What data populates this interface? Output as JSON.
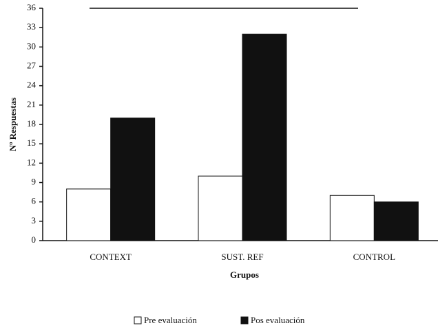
{
  "chart_data": {
    "type": "bar",
    "categories": [
      "CONTEXT",
      "SUST. REF",
      "CONTROL"
    ],
    "series": [
      {
        "name": "Pre evaluación",
        "color": "#ffffff",
        "values": [
          8,
          10,
          7
        ]
      },
      {
        "name": "Pos evaluación",
        "color": "#111111",
        "values": [
          19,
          32,
          6
        ]
      }
    ],
    "xlabel": "Grupos",
    "ylabel": "Nº Respuestas",
    "ylim": [
      0,
      36
    ],
    "yticks": [
      0,
      3,
      6,
      9,
      12,
      15,
      18,
      21,
      24,
      27,
      30,
      33,
      36
    ],
    "grid": false,
    "legend": "bottom"
  }
}
